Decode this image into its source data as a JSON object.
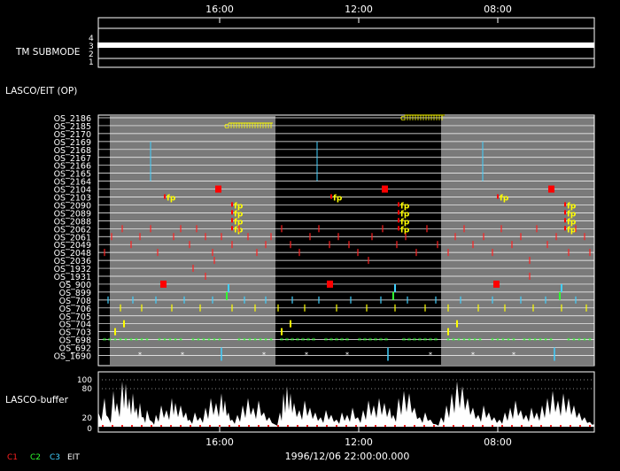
{
  "colors": {
    "background": "#000000",
    "foreground": "#ffffff",
    "shade": "#7a7a7a",
    "c1": "#ff2020",
    "c2": "#30ff30",
    "c3": "#40d0ff",
    "yellow": "#ffff00",
    "red_block": "#ff0000"
  },
  "top_axis": {
    "tick_labels": [
      "16:00",
      "12:00",
      "08:00"
    ]
  },
  "bottom_axis": {
    "tick_labels": [
      "16:00",
      "12:00",
      "08:00"
    ]
  },
  "tm_submode": {
    "label": "TM SUBMODE",
    "levels": [
      "4",
      "3",
      "2",
      "1"
    ]
  },
  "lasco_eit_label": "LASCO/EIT (OP)",
  "os_rows": [
    "OS_2186",
    "OS_2185",
    "OS_2170",
    "OS_2169",
    "OS_2168",
    "OS_2167",
    "OS_2166",
    "OS_2165",
    "OS_2164",
    "OS_2104",
    "OS_2103",
    "OS_2090",
    "OS_2089",
    "OS_2088",
    "OS_2062",
    "OS_2061",
    "OS_2049",
    "OS_2048",
    "OS_2036",
    "OS_1932",
    "OS_1931",
    "OS_900",
    "OS_899",
    "OS_708",
    "OS_706",
    "OS_705",
    "OS_704",
    "OS_703",
    "OS_698",
    "OS_692",
    "OS_1690"
  ],
  "markers": {
    "c_label": "c",
    "fp_label": "fp",
    "star": "*"
  },
  "buffer": {
    "label": "LASCO-buffer",
    "ticks": [
      "100",
      "80",
      "20",
      "0"
    ]
  },
  "legend": {
    "c1": "C1",
    "c2": "C2",
    "c3": "C3",
    "eit": "EIT"
  },
  "timestamp": "1996/12/06 22:00:00.000"
}
